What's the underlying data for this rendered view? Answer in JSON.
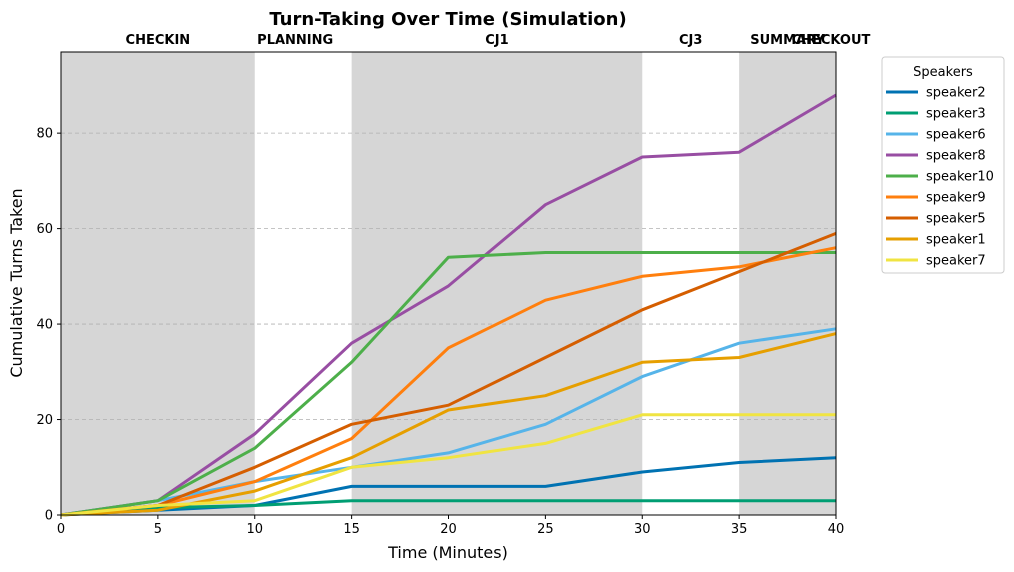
{
  "chart_data": {
    "type": "line",
    "title": "Turn-Taking Over Time (Simulation)",
    "xlabel": "Time (Minutes)",
    "ylabel": "Cumulative Turns Taken",
    "xlim": [
      0,
      40
    ],
    "ylim": [
      0,
      97
    ],
    "x_ticks": [
      0,
      5,
      10,
      15,
      20,
      25,
      30,
      35,
      40
    ],
    "y_ticks": [
      0,
      20,
      40,
      60,
      80
    ],
    "grid": "horizontal dashed",
    "legend_title": "Speakers",
    "legend_position": "outside right",
    "phases": [
      {
        "label": "CHECKIN",
        "start": 0,
        "end": 10,
        "shaded": true
      },
      {
        "label": "PLANNING",
        "start": 10,
        "end": 15,
        "shaded": false
      },
      {
        "label": "CJ1",
        "start": 15,
        "end": 30,
        "shaded": true
      },
      {
        "label": "CJ3",
        "start": 30,
        "end": 35,
        "shaded": false
      },
      {
        "label": "SUMMARY",
        "start": 35,
        "end": 40,
        "shaded": true
      },
      {
        "label": "CHECKOUT",
        "start": 40,
        "end": 40,
        "shaded": false
      }
    ],
    "x": [
      0,
      5,
      10,
      15,
      20,
      25,
      30,
      35,
      40
    ],
    "series": [
      {
        "name": "speaker2",
        "color": "#0072B2",
        "values": [
          0,
          1,
          2,
          6,
          6,
          6,
          9,
          11,
          12
        ]
      },
      {
        "name": "speaker3",
        "color": "#009E73",
        "values": [
          0,
          1.5,
          2,
          3,
          3,
          3,
          3,
          3,
          3
        ]
      },
      {
        "name": "speaker6",
        "color": "#56B4E9",
        "values": [
          0,
          3,
          7,
          10,
          13,
          19,
          29,
          36,
          39
        ]
      },
      {
        "name": "speaker8",
        "color": "#984EA3",
        "values": [
          0,
          3,
          17,
          36,
          48,
          65,
          75,
          76,
          88
        ]
      },
      {
        "name": "speaker10",
        "color": "#4DAF4A",
        "values": [
          0,
          3,
          14,
          32,
          54,
          55,
          55,
          55,
          55
        ]
      },
      {
        "name": "speaker9",
        "color": "#FF7F0E",
        "values": [
          0,
          2,
          7,
          16,
          35,
          45,
          50,
          52,
          56
        ]
      },
      {
        "name": "speaker5",
        "color": "#D55E00",
        "values": [
          0,
          2,
          10,
          19,
          23,
          33,
          43,
          51,
          59
        ]
      },
      {
        "name": "speaker1",
        "color": "#E69F00",
        "values": [
          0,
          1,
          5,
          12,
          22,
          25,
          32,
          33,
          38
        ]
      },
      {
        "name": "speaker7",
        "color": "#F0E442",
        "values": [
          0,
          2,
          3,
          10,
          12,
          15,
          21,
          21,
          21
        ]
      }
    ]
  }
}
